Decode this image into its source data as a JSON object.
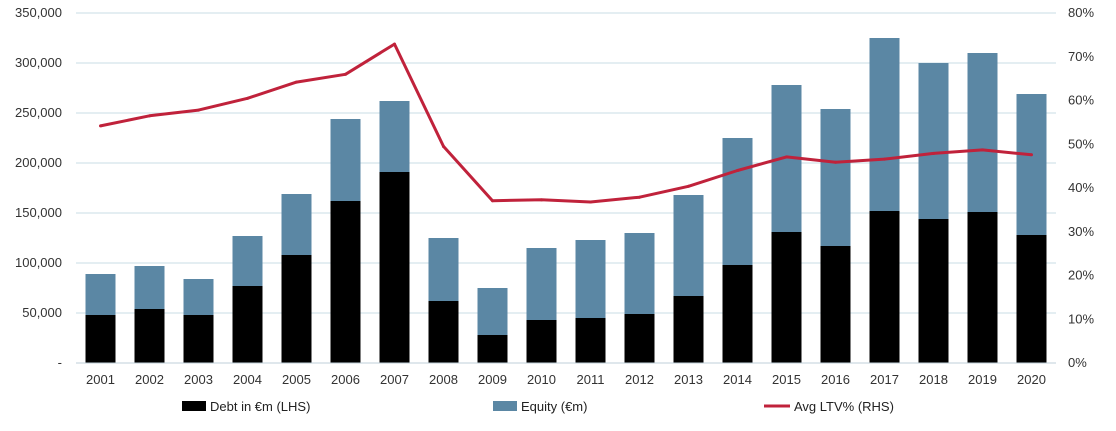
{
  "chart_data": {
    "type": "bar",
    "stacked": true,
    "categories": [
      "2001",
      "2002",
      "2003",
      "2004",
      "2005",
      "2006",
      "2007",
      "2008",
      "2009",
      "2010",
      "2011",
      "2012",
      "2013",
      "2014",
      "2015",
      "2016",
      "2017",
      "2018",
      "2019",
      "2020"
    ],
    "series": [
      {
        "name": "Debt in €m (LHS)",
        "axis": "left",
        "type": "bar",
        "color": "#000000",
        "values": [
          48000,
          54000,
          48000,
          77000,
          108000,
          162000,
          191000,
          62000,
          28000,
          43000,
          45000,
          49000,
          67000,
          98000,
          131000,
          117000,
          152000,
          144000,
          151000,
          128000
        ]
      },
      {
        "name": "Equity (€m)",
        "axis": "left",
        "type": "bar",
        "color": "#5b87a4",
        "values": [
          41000,
          43000,
          36000,
          50000,
          61000,
          82000,
          71000,
          63000,
          47000,
          72000,
          78000,
          81000,
          101000,
          127000,
          147000,
          137000,
          173000,
          156000,
          159000,
          141000
        ]
      },
      {
        "name": "Avg LTV% (RHS)",
        "axis": "right",
        "type": "line",
        "color": "#c0223b",
        "values": [
          54.2,
          56.5,
          57.8,
          60.5,
          64.2,
          66.0,
          72.9,
          49.5,
          37.1,
          37.3,
          36.8,
          37.9,
          40.4,
          44.0,
          47.1,
          45.9,
          46.6,
          47.9,
          48.7,
          47.6
        ]
      }
    ],
    "y_left": {
      "min": 0,
      "max": 350000,
      "ticks": [
        0,
        50000,
        100000,
        150000,
        200000,
        250000,
        300000,
        350000
      ],
      "tick_labels": [
        "-",
        "50,000",
        "100,000",
        "150,000",
        "200,000",
        "250,000",
        "300,000",
        "350,000"
      ]
    },
    "y_right": {
      "min": 0,
      "max": 80,
      "ticks": [
        0,
        10,
        20,
        30,
        40,
        50,
        60,
        70,
        80
      ],
      "tick_labels": [
        "0%",
        "10%",
        "20%",
        "30%",
        "40%",
        "50%",
        "60%",
        "70%",
        "80%"
      ]
    },
    "title": "",
    "xlabel": "",
    "ylabel": "",
    "grid": true,
    "gridline_color": "#c9dde6",
    "legend_position": "bottom"
  }
}
